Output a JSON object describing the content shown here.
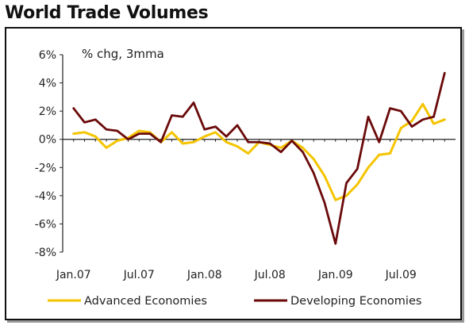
{
  "title": "World Trade Volumes",
  "chart_data": {
    "type": "line",
    "title": "World Trade Volumes",
    "subtitle": "% chg, 3mma",
    "xlabel": "",
    "ylabel": "",
    "ylim": [
      -8,
      6
    ],
    "y_ticks": [
      6,
      4,
      2,
      0,
      -2,
      -4,
      -6,
      -8
    ],
    "y_tick_labels": [
      "6%",
      "4%",
      "2%",
      "0%",
      "-2%",
      "-4%",
      "-6%",
      "-8%"
    ],
    "x_tick_labels": [
      "Jan.07",
      "Jul.07",
      "Jan.08",
      "Jul.08",
      "Jan.09",
      "Jul.09"
    ],
    "x_start": "2007-01",
    "x_end": "2009-11",
    "x": [
      "2007-01",
      "2007-02",
      "2007-03",
      "2007-04",
      "2007-05",
      "2007-06",
      "2007-07",
      "2007-08",
      "2007-09",
      "2007-10",
      "2007-11",
      "2007-12",
      "2008-01",
      "2008-02",
      "2008-03",
      "2008-04",
      "2008-05",
      "2008-06",
      "2008-07",
      "2008-08",
      "2008-09",
      "2008-10",
      "2008-11",
      "2008-12",
      "2009-01",
      "2009-02",
      "2009-03",
      "2009-04",
      "2009-05",
      "2009-06",
      "2009-07",
      "2009-08",
      "2009-09",
      "2009-10",
      "2009-11"
    ],
    "grid": false,
    "legend_position": "bottom",
    "series": [
      {
        "name": "Advanced Economies",
        "color": "#f5c400",
        "values": [
          0.4,
          0.5,
          0.2,
          -0.6,
          -0.1,
          0.1,
          0.6,
          0.5,
          -0.2,
          0.5,
          -0.3,
          -0.2,
          0.2,
          0.5,
          -0.2,
          -0.5,
          -1.0,
          -0.2,
          -0.4,
          -0.6,
          -0.1,
          -0.6,
          -1.4,
          -2.6,
          -4.3,
          -4.0,
          -3.2,
          -2.0,
          -1.1,
          -1.0,
          0.8,
          1.3,
          2.5,
          1.1,
          1.4
        ]
      },
      {
        "name": "Developing Economies",
        "color": "#6b0a0a",
        "values": [
          2.2,
          1.2,
          1.4,
          0.7,
          0.6,
          0.0,
          0.4,
          0.4,
          -0.2,
          1.7,
          1.6,
          2.6,
          0.7,
          0.9,
          0.2,
          1.0,
          -0.2,
          -0.2,
          -0.3,
          -0.9,
          -0.1,
          -0.9,
          -2.4,
          -4.5,
          -7.4,
          -3.1,
          -2.1,
          1.6,
          -0.2,
          2.2,
          2.0,
          0.9,
          1.4,
          1.6,
          4.7
        ]
      }
    ]
  }
}
